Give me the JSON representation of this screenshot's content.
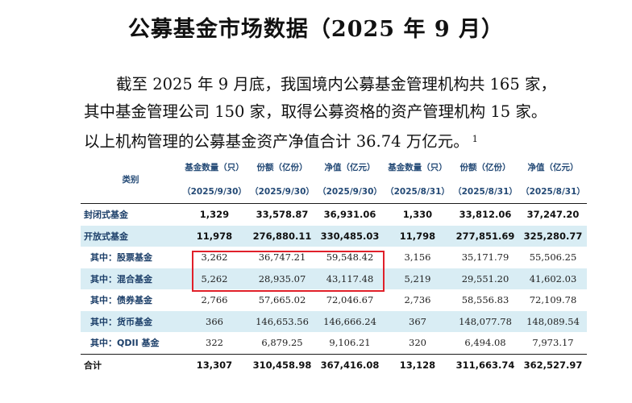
{
  "title": "公募基金市场数据（2025 年 9 月）",
  "paragraph": {
    "line1": "截至 2025 年 9 月底，我国境内公募基金管理机构共 165 家，",
    "line2": "其中基金管理公司 150 家，取得公募资格的资产管理机构 15 家。",
    "line3": "以上机构管理的公募基金资产净值合计 36.74 万亿元。",
    "footnote": "1"
  },
  "table": {
    "header": {
      "category": "类别",
      "columns": [
        {
          "title": "基金数量（只）",
          "date": "（2025/9/30）"
        },
        {
          "title": "份额（亿份）",
          "date": "（2025/9/30）"
        },
        {
          "title": "净值（亿元）",
          "date": "（2025/9/30）"
        },
        {
          "title": "基金数量（只）",
          "date": "（2025/8/31）"
        },
        {
          "title": "份额（亿份）",
          "date": "（2025/8/31）"
        },
        {
          "title": "净值（亿元）",
          "date": "（2025/8/31）"
        }
      ]
    },
    "rows": [
      {
        "name": "封闭式基金",
        "values": [
          "1,329",
          "33,578.87",
          "36,931.06",
          "1,330",
          "33,812.06",
          "37,247.20"
        ]
      },
      {
        "name": "开放式基金",
        "values": [
          "11,978",
          "276,880.11",
          "330,485.03",
          "11,798",
          "277,851.69",
          "325,280.77"
        ]
      },
      {
        "name": "其中：股票基金",
        "values": [
          "3,262",
          "36,747.21",
          "59,548.42",
          "3,156",
          "35,171.79",
          "55,506.25"
        ]
      },
      {
        "name": "其中：混合基金",
        "values": [
          "5,262",
          "28,935.07",
          "43,117.48",
          "5,219",
          "29,551.20",
          "41,602.03"
        ]
      },
      {
        "name": "其中：债券基金",
        "values": [
          "2,766",
          "57,665.02",
          "72,046.67",
          "2,736",
          "58,556.83",
          "72,109.78"
        ]
      },
      {
        "name": "其中：货币基金",
        "values": [
          "366",
          "146,653.56",
          "146,666.24",
          "367",
          "148,077.78",
          "148,089.54"
        ]
      },
      {
        "name": "其中：QDII 基金",
        "values": [
          "322",
          "6,879.25",
          "9,106.21",
          "320",
          "6,494.08",
          "7,973.17"
        ]
      },
      {
        "name": "合计",
        "values": [
          "13,307",
          "310,458.98",
          "367,416.08",
          "13,128",
          "311,663.74",
          "362,527.97"
        ]
      }
    ]
  },
  "colors": {
    "shade": "#d9edf4",
    "header_text": "#244a76",
    "highlight_border": "#e0202a"
  }
}
